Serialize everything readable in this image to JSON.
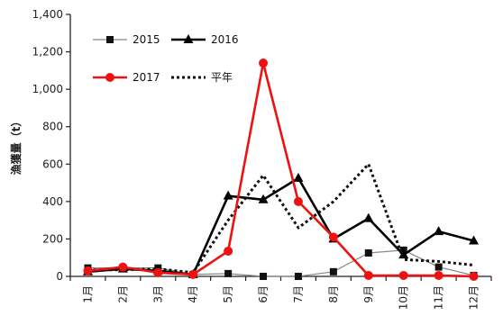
{
  "chart_data": {
    "type": "line",
    "categories": [
      "1月",
      "2月",
      "3月",
      "4月",
      "5月",
      "6月",
      "7月",
      "8月",
      "9月",
      "10月",
      "11月",
      "12月"
    ],
    "y_ticks": [
      "0",
      "200",
      "400",
      "600",
      "800",
      "1,000",
      "1,200",
      "1,400"
    ],
    "ylabel": "漁獲量（t）",
    "xlabel": "",
    "ylim": [
      0,
      1400
    ],
    "grid": false,
    "legend_position": "top-left",
    "series": [
      {
        "name": "2015",
        "color": "#111111",
        "marker": "square",
        "style": "solid",
        "values": [
          45,
          45,
          45,
          10,
          15,
          0,
          0,
          25,
          125,
          140,
          50,
          5
        ]
      },
      {
        "name": "2016",
        "color": "#000000",
        "marker": "triangle",
        "style": "solid",
        "values": [
          25,
          40,
          30,
          10,
          430,
          410,
          525,
          200,
          310,
          115,
          240,
          190
        ]
      },
      {
        "name": "2017",
        "color": "#ee1111",
        "marker": "circle",
        "style": "solid",
        "values": [
          30,
          50,
          20,
          10,
          135,
          1140,
          400,
          210,
          5,
          5,
          5,
          0
        ]
      },
      {
        "name": "平年",
        "color": "#111111",
        "marker": "none",
        "style": "dotted",
        "values": [
          35,
          35,
          40,
          20,
          300,
          540,
          260,
          400,
          600,
          90,
          80,
          60
        ]
      }
    ]
  }
}
